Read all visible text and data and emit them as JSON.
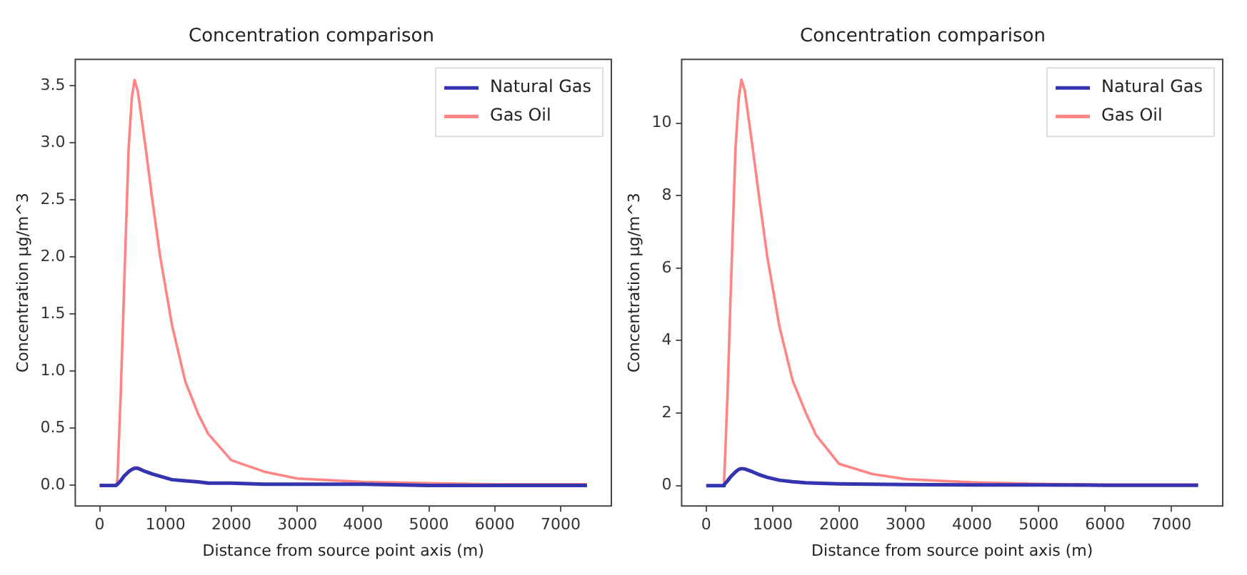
{
  "chart_data": [
    {
      "type": "line",
      "title": "Concentration comparison",
      "xlabel": "Distance from source point axis (m)",
      "ylabel": "Concentration µg/m^3",
      "x": [
        0,
        250,
        270,
        320,
        370,
        440,
        490,
        530,
        580,
        700,
        800,
        920,
        1100,
        1300,
        1500,
        1650,
        2000,
        2500,
        3000,
        4000,
        5000,
        6000,
        7400
      ],
      "series": [
        {
          "name": "Natural Gas",
          "color": "#3434b0",
          "values": [
            0,
            0,
            0.01,
            0.04,
            0.08,
            0.12,
            0.14,
            0.15,
            0.15,
            0.12,
            0.1,
            0.08,
            0.05,
            0.04,
            0.03,
            0.02,
            0.02,
            0.01,
            0.01,
            0.01,
            0,
            0,
            0
          ]
        },
        {
          "name": "Gas Oil",
          "color": "#ff8585",
          "values": [
            0,
            0,
            0.05,
            0.8,
            1.7,
            2.95,
            3.4,
            3.55,
            3.45,
            2.95,
            2.5,
            2.0,
            1.4,
            0.91,
            0.62,
            0.45,
            0.22,
            0.12,
            0.06,
            0.03,
            0.02,
            0.01,
            0.01
          ]
        }
      ],
      "xlim": [
        -370,
        7770
      ],
      "xticks": [
        0,
        1000,
        2000,
        3000,
        4000,
        5000,
        6000,
        7000
      ],
      "ylim": [
        -0.18,
        3.73
      ],
      "yticks": [
        {
          "value": 0,
          "label": "0.0"
        },
        0.5,
        {
          "value": 1,
          "label": "1.0"
        },
        1.5,
        {
          "value": 2,
          "label": "2.0"
        },
        2.5,
        {
          "value": 3,
          "label": "3.0"
        },
        3.5
      ],
      "legend": "top right",
      "marker": "none",
      "line_style": "solid",
      "grid": false
    },
    {
      "type": "line",
      "title": "Concentration comparison",
      "xlabel": "Distance from source point axis (m)",
      "ylabel": "Concentration µg/m^3",
      "x": [
        0,
        250,
        270,
        320,
        370,
        440,
        490,
        530,
        580,
        700,
        800,
        920,
        1100,
        1300,
        1500,
        1650,
        2000,
        2500,
        3000,
        4000,
        5000,
        6000,
        7400
      ],
      "series": [
        {
          "name": "Natural Gas",
          "color": "#3434b0",
          "values": [
            0,
            0,
            0.03,
            0.13,
            0.25,
            0.38,
            0.45,
            0.47,
            0.46,
            0.38,
            0.3,
            0.23,
            0.15,
            0.11,
            0.08,
            0.07,
            0.05,
            0.04,
            0.03,
            0.02,
            0.02,
            0.01,
            0.01
          ]
        },
        {
          "name": "Gas Oil",
          "color": "#ff8585",
          "values": [
            0,
            0,
            0.15,
            2.5,
            5.4,
            9.3,
            10.7,
            11.2,
            10.9,
            9.3,
            7.9,
            6.3,
            4.4,
            2.9,
            2.0,
            1.4,
            0.6,
            0.32,
            0.18,
            0.09,
            0.05,
            0.03,
            0.03
          ]
        }
      ],
      "xlim": [
        -370,
        7770
      ],
      "xticks": [
        0,
        1000,
        2000,
        3000,
        4000,
        5000,
        6000,
        7000
      ],
      "ylim": [
        -0.56,
        11.76
      ],
      "yticks": [
        0,
        2,
        4,
        6,
        8,
        10
      ],
      "legend": "top right",
      "marker": "none",
      "line_style": "solid",
      "grid": false
    }
  ]
}
